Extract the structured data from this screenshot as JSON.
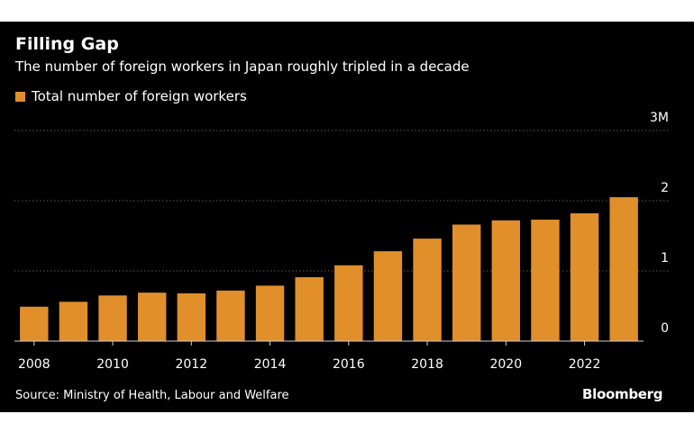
{
  "chart_data": {
    "type": "bar",
    "title": "Filling Gap",
    "subtitle": "The number of foreign workers in Japan roughly tripled in a decade",
    "legend": [
      {
        "name": "Total number of foreign workers",
        "color": "#e08f2a"
      }
    ],
    "categories": [
      2008,
      2009,
      2010,
      2011,
      2012,
      2013,
      2014,
      2015,
      2016,
      2017,
      2018,
      2019,
      2020,
      2021,
      2022,
      2023
    ],
    "series": [
      {
        "name": "Total number of foreign workers",
        "values": [
          0.49,
          0.56,
          0.65,
          0.69,
          0.68,
          0.72,
          0.79,
          0.91,
          1.08,
          1.28,
          1.46,
          1.66,
          1.72,
          1.73,
          1.82,
          2.05
        ]
      }
    ],
    "x_tick_labels": [
      "2008",
      "2010",
      "2012",
      "2014",
      "2016",
      "2018",
      "2020",
      "2022"
    ],
    "y_ticks": [
      {
        "value": 0,
        "label": "0"
      },
      {
        "value": 1,
        "label": "1"
      },
      {
        "value": 2,
        "label": "2"
      },
      {
        "value": 3,
        "label": "3M"
      }
    ],
    "ylim": [
      0,
      3
    ],
    "xlabel": "",
    "ylabel": "",
    "grid": true,
    "y_axis_position": "right",
    "legend_position": "top-left",
    "bar_color": "#e08f2a",
    "grid_color": "#5a5a5a",
    "source": "Source: Ministry of Health, Labour and Welfare"
  },
  "brand": {
    "logo_text": "Bloomberg"
  }
}
